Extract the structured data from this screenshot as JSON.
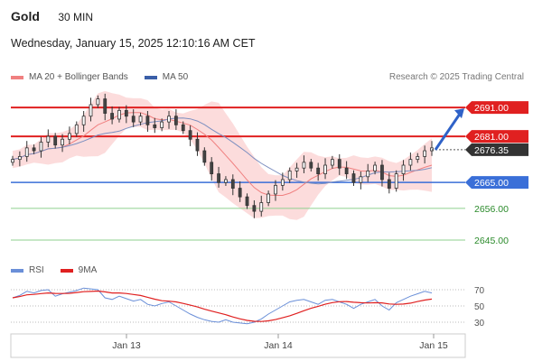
{
  "header": {
    "instrument": "Gold",
    "timeframe": "30 MIN",
    "datetime": "Wednesday, January 15, 2025 12:10:16 AM CET"
  },
  "legend": {
    "ma20_label": "MA 20 + Bollinger Bands",
    "ma50_label": "MA 50",
    "rsi_label": "RSI",
    "rsi_ma_label": "9MA",
    "colors": {
      "ma20": "#f08080",
      "ma50": "#3a5fa8",
      "rsi": "#6a8fd8",
      "rsi_ma": "#e02020"
    }
  },
  "credit": "Research © 2025 Trading Central",
  "chart_data": [
    {
      "type": "candlestick",
      "x_tick_labels": [
        "Jan 13",
        "Jan 14",
        "Jan 15"
      ],
      "ylim": [
        2640,
        2697
      ],
      "current_price": 2676.35,
      "resistance": [
        {
          "value": 2691.0,
          "label": "2691.00",
          "color": "#e02020"
        },
        {
          "value": 2681.0,
          "label": "2681.00",
          "color": "#e02020"
        }
      ],
      "pivot": {
        "value": 2665.0,
        "label": "2665.00",
        "color": "#3a6fd8"
      },
      "support": [
        {
          "value": 2656.0,
          "label": "2656.00",
          "color": "#2a8a2a"
        },
        {
          "value": 2645.0,
          "label": "2645.00",
          "color": "#2a8a2a"
        }
      ],
      "price_path": [
        2673,
        2674,
        2677,
        2676,
        2679,
        2681,
        2678,
        2680,
        2682,
        2685,
        2688,
        2692,
        2694,
        2689,
        2687,
        2690,
        2688,
        2686,
        2688,
        2685,
        2684,
        2686,
        2688,
        2685,
        2683,
        2680,
        2676,
        2672,
        2668,
        2665,
        2666,
        2663,
        2660,
        2657,
        2655,
        2658,
        2661,
        2664,
        2666,
        2669,
        2670,
        2672,
        2670,
        2668,
        2671,
        2673,
        2670,
        2668,
        2665,
        2667,
        2669,
        2671,
        2666,
        2663,
        2668,
        2671,
        2673,
        2674,
        2676,
        2677
      ]
    },
    {
      "type": "line",
      "name": "RSI",
      "y_tick_labels": [
        "70",
        "50",
        "30"
      ],
      "ylim": [
        20,
        80
      ],
      "rsi_path": [
        60,
        63,
        68,
        66,
        69,
        70,
        62,
        65,
        67,
        69,
        72,
        71,
        70,
        60,
        58,
        62,
        59,
        56,
        58,
        52,
        50,
        53,
        55,
        50,
        45,
        40,
        36,
        33,
        31,
        30,
        33,
        30,
        29,
        28,
        30,
        34,
        40,
        45,
        50,
        55,
        57,
        58,
        55,
        52,
        57,
        58,
        55,
        52,
        47,
        52,
        55,
        58,
        50,
        45,
        54,
        58,
        62,
        65,
        68,
        66
      ]
    }
  ]
}
